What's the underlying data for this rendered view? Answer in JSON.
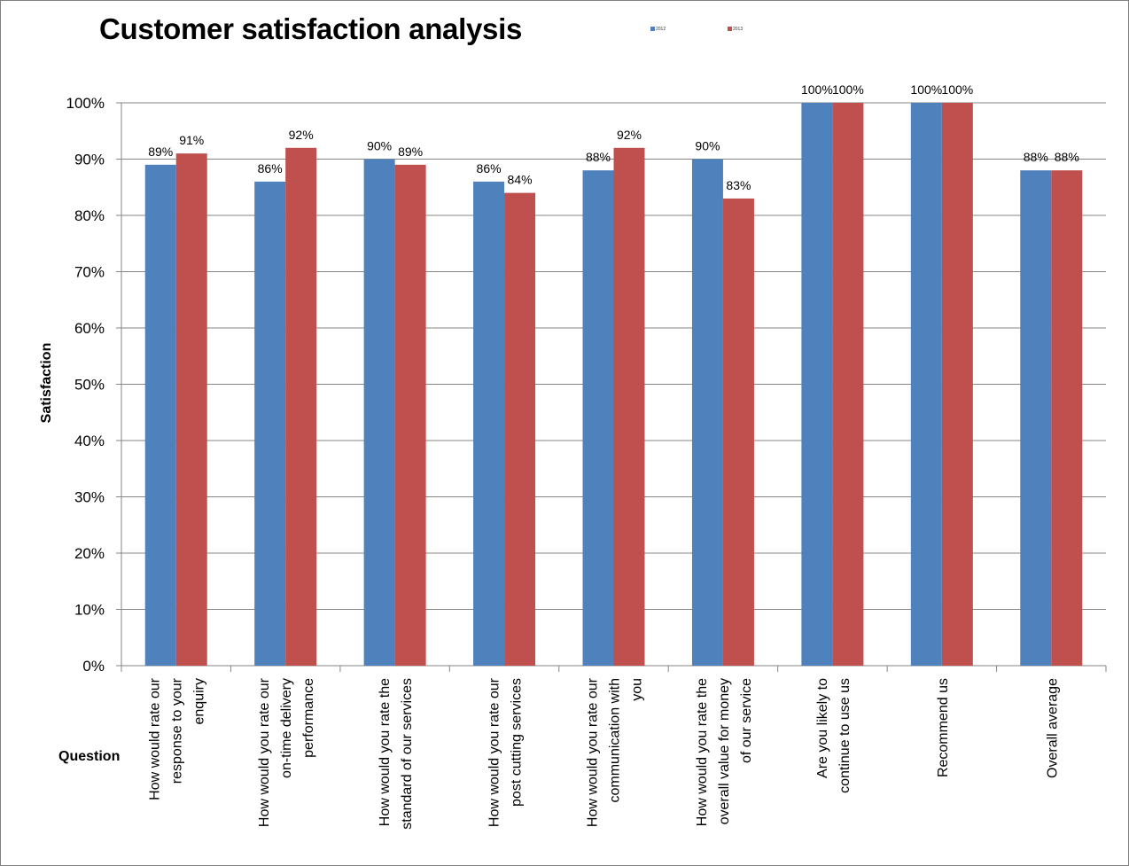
{
  "chart_data": {
    "type": "bar",
    "title": "Customer satisfaction analysis",
    "xlabel": "Question",
    "ylabel": "Satisfaction",
    "ylim": [
      0,
      1
    ],
    "y_ticks": [
      "0%",
      "10%",
      "20%",
      "30%",
      "40%",
      "50%",
      "60%",
      "70%",
      "80%",
      "90%",
      "100%"
    ],
    "grid": true,
    "legend_position": "top",
    "categories": [
      [
        "How would rate our",
        "response to your",
        "enquiry"
      ],
      [
        "How would you rate our",
        "on-time delivery",
        "performance"
      ],
      [
        "How would you rate the",
        "standard of our services"
      ],
      [
        "How would you rate our",
        "post cutting services"
      ],
      [
        "How would you rate our",
        "communication with",
        "you"
      ],
      [
        "How would you rate the",
        "overall value for money",
        "of our service"
      ],
      [
        "Are you likely to",
        "continue to use us"
      ],
      [
        "Recommend us"
      ],
      [
        "Overall average"
      ]
    ],
    "series": [
      {
        "name": "2012",
        "color": "#4f81bd",
        "values": [
          0.89,
          0.86,
          0.9,
          0.86,
          0.88,
          0.9,
          1.0,
          1.0,
          0.88
        ],
        "labels": [
          "89%",
          "86%",
          "90%",
          "86%",
          "88%",
          "90%",
          "100%",
          "100%",
          "88%"
        ]
      },
      {
        "name": "2013",
        "color": "#c0504d",
        "values": [
          0.91,
          0.92,
          0.89,
          0.84,
          0.92,
          0.83,
          1.0,
          1.0,
          0.88
        ],
        "labels": [
          "91%",
          "92%",
          "89%",
          "84%",
          "92%",
          "83%",
          "100%",
          "100%",
          "88%"
        ]
      }
    ]
  }
}
